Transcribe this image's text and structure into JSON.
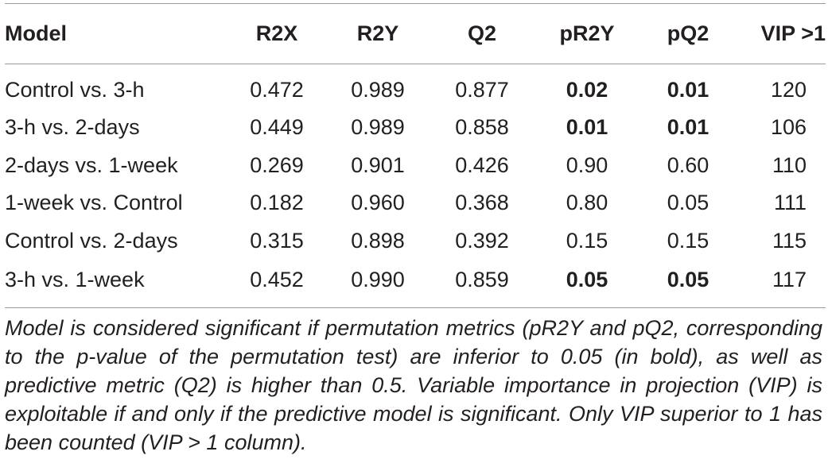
{
  "table": {
    "headers": [
      "Model",
      "R2X",
      "R2Y",
      "Q2",
      "pR2Y",
      "pQ2",
      "VIP >1"
    ],
    "rows": [
      {
        "model": "Control vs. 3-h",
        "r2x": "0.472",
        "r2y": "0.989",
        "q2": "0.877",
        "pr2y": "0.02",
        "pq2": "0.01",
        "vip": "120",
        "pr2y_bold": true,
        "pq2_bold": true
      },
      {
        "model": "3-h vs. 2-days",
        "r2x": "0.449",
        "r2y": "0.989",
        "q2": "0.858",
        "pr2y": "0.01",
        "pq2": "0.01",
        "vip": "106",
        "pr2y_bold": true,
        "pq2_bold": true
      },
      {
        "model": "2-days vs. 1-week",
        "r2x": "0.269",
        "r2y": "0.901",
        "q2": "0.426",
        "pr2y": "0.90",
        "pq2": "0.60",
        "vip": "110",
        "pr2y_bold": false,
        "pq2_bold": false
      },
      {
        "model": "1-week vs. Control",
        "r2x": "0.182",
        "r2y": "0.960",
        "q2": "0.368",
        "pr2y": "0.80",
        "pq2": "0.05",
        "vip": "111",
        "pr2y_bold": false,
        "pq2_bold": false
      },
      {
        "model": "Control vs. 2-days",
        "r2x": "0.315",
        "r2y": "0.898",
        "q2": "0.392",
        "pr2y": "0.15",
        "pq2": "0.15",
        "vip": "115",
        "pr2y_bold": false,
        "pq2_bold": false
      },
      {
        "model": "3-h vs. 1-week",
        "r2x": "0.452",
        "r2y": "0.990",
        "q2": "0.859",
        "pr2y": "0.05",
        "pq2": "0.05",
        "vip": "117",
        "pr2y_bold": true,
        "pq2_bold": true
      }
    ]
  },
  "footnote": "Model is considered significant if permutation metrics (pR2Y and pQ2, corresponding to the p-value of the permutation test) are inferior to 0.05 (in bold), as well as predictive metric (Q2) is higher than 0.5. Variable importance in projection (VIP) is exploitable if and only if the predictive model is significant. Only VIP superior to 1 has been counted (VIP > 1 column).",
  "colors": {
    "text": "#231f20",
    "rule": "#9a9a9a",
    "background": "#ffffff"
  }
}
